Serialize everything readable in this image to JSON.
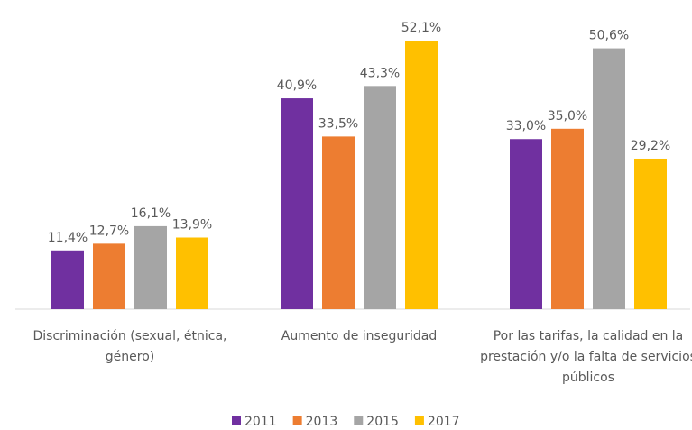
{
  "chart_data": {
    "type": "bar",
    "categories": [
      "Discriminación (sexual, étnica, género)",
      "Aumento de inseguridad",
      "Por las tarifas, la calidad en la prestación y/o la falta de servicios públicos"
    ],
    "series": [
      {
        "name": "2011",
        "color": "#7030a0",
        "values": [
          11.4,
          40.9,
          33.0
        ],
        "value_labels": [
          "11,4%",
          "40,9%",
          "33,0%"
        ]
      },
      {
        "name": "2013",
        "color": "#ed7d31",
        "values": [
          12.7,
          33.5,
          35.0
        ],
        "value_labels": [
          "12,7%",
          "33,5%",
          "35,0%"
        ]
      },
      {
        "name": "2015",
        "color": "#a5a5a5",
        "values": [
          16.1,
          43.3,
          50.6
        ],
        "value_labels": [
          "16,1%",
          "43,3%",
          "50,6%"
        ]
      },
      {
        "name": "2017",
        "color": "#ffc000",
        "values": [
          13.9,
          52.1,
          29.2
        ],
        "value_labels": [
          "13,9%",
          "52,1%",
          "29,2%"
        ]
      }
    ],
    "legend": "bottom"
  }
}
